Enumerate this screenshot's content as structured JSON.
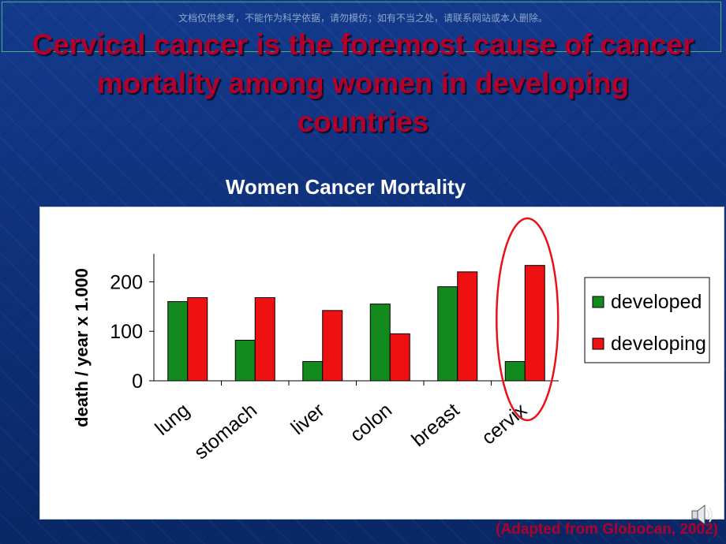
{
  "watermark": "文档仅供参考，不能作为科学依据，请勿模仿；如有不当之处，请联系网站或本人删除。",
  "slide_title": "Cervical cancer  is the foremost cause of cancer mortality among women in developing countries",
  "source_note": "(Adapted from  Globocan, 2002)",
  "colors": {
    "developed": "#138a1e",
    "developing": "#ee1111",
    "title": "#b3002b",
    "highlight": "#e8111a"
  },
  "icons": {
    "speaker": "speaker-icon"
  },
  "chart_data": {
    "type": "bar",
    "title": "Women Cancer Mortality",
    "xlabel": "",
    "ylabel": "death / year x 1.000",
    "categories": [
      "lung",
      "stomach",
      "liver",
      "colon",
      "breast",
      "cervix"
    ],
    "series": [
      {
        "name": "developed",
        "values": [
          160,
          82,
          39,
          155,
          190,
          39
        ]
      },
      {
        "name": "developing",
        "values": [
          168,
          168,
          142,
          95,
          220,
          233
        ]
      }
    ],
    "ylim": [
      0,
      250
    ],
    "yticks": [
      0,
      100,
      200
    ],
    "grid": false,
    "legend": "right",
    "highlighted_category": "cervix"
  }
}
